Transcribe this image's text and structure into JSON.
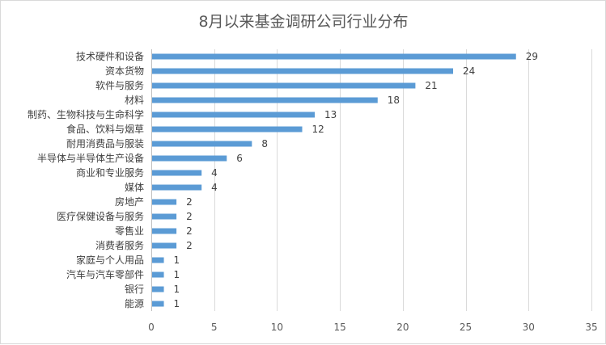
{
  "chart_data": {
    "type": "bar",
    "orientation": "horizontal",
    "title": "8月以来基金调研公司行业分布",
    "categories": [
      "技术硬件和设备",
      "资本货物",
      "软件与服务",
      "材料",
      "制药、生物科技与生命科学",
      "食品、饮料与烟草",
      "耐用消费品与服装",
      "半导体与半导体生产设备",
      "商业和专业服务",
      "媒体",
      "房地产",
      "医疗保健设备与服务",
      "零售业",
      "消费者服务",
      "家庭与个人用品",
      "汽车与汽车零部件",
      "银行",
      "能源"
    ],
    "values": [
      29,
      24,
      21,
      18,
      13,
      12,
      8,
      6,
      4,
      4,
      2,
      2,
      2,
      2,
      1,
      1,
      1,
      1
    ],
    "xlim": [
      0,
      35
    ],
    "xticks": [
      0,
      5,
      10,
      15,
      20,
      25,
      30,
      35
    ],
    "xlabel": "",
    "ylabel": "",
    "grid": true,
    "legend": "none",
    "bar_color": "#5b9bd5"
  }
}
